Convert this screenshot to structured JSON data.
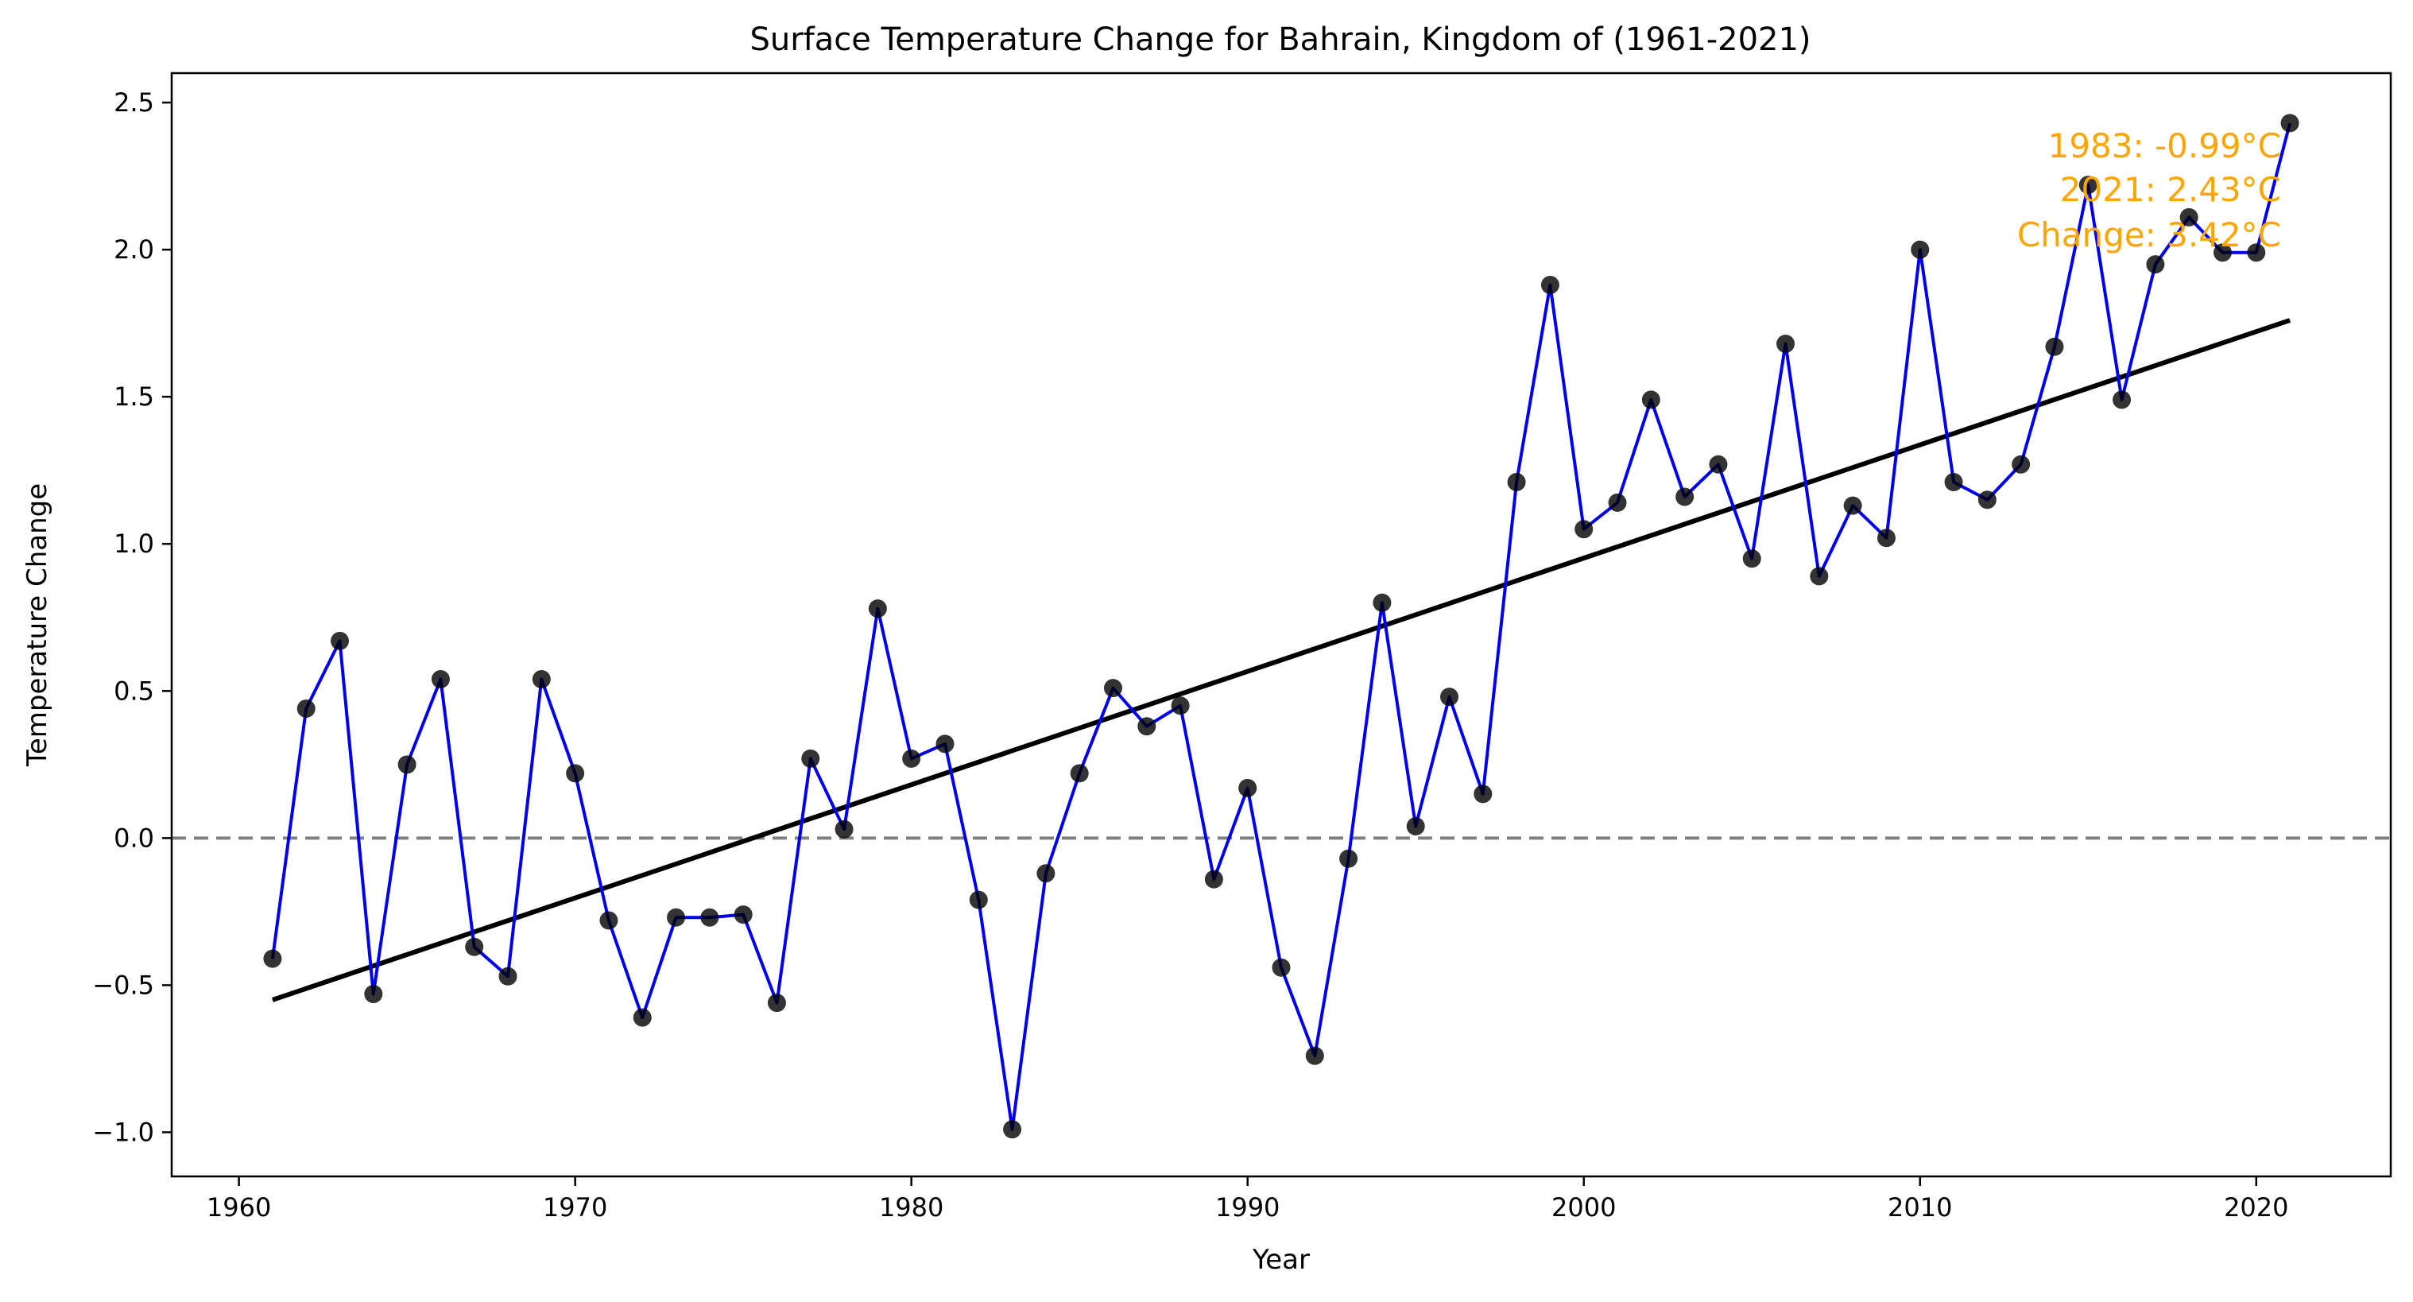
{
  "chart_data": {
    "type": "line",
    "title": "Surface Temperature Change for Bahrain, Kingdom of (1961-2021)",
    "xlabel": "Year",
    "ylabel": "Temperature Change",
    "xlim": [
      1958,
      2024
    ],
    "ylim": [
      -1.15,
      2.6
    ],
    "xticks": [
      1960,
      1970,
      1980,
      1990,
      2000,
      2010,
      2020
    ],
    "yticks": [
      -1.0,
      -0.5,
      0.0,
      0.5,
      1.0,
      1.5,
      2.0,
      2.5
    ],
    "ytick_labels": [
      "−1.0",
      "−0.5",
      "0.0",
      "0.5",
      "1.0",
      "1.5",
      "2.0",
      "2.5"
    ],
    "grid": false,
    "zero_line": true,
    "colors": {
      "series": "#0000ee",
      "points": "#000000",
      "trend": "#000000",
      "zero": "#808080",
      "annotation": "#ffa500"
    },
    "x": [
      1961,
      1962,
      1963,
      1964,
      1965,
      1966,
      1967,
      1968,
      1969,
      1970,
      1971,
      1972,
      1973,
      1974,
      1975,
      1976,
      1977,
      1978,
      1979,
      1980,
      1981,
      1982,
      1983,
      1984,
      1985,
      1986,
      1987,
      1988,
      1989,
      1990,
      1991,
      1992,
      1993,
      1994,
      1995,
      1996,
      1997,
      1998,
      1999,
      2000,
      2001,
      2002,
      2003,
      2004,
      2005,
      2006,
      2007,
      2008,
      2009,
      2010,
      2011,
      2012,
      2013,
      2014,
      2015,
      2016,
      2017,
      2018,
      2019,
      2020,
      2021
    ],
    "values": [
      -0.41,
      0.44,
      0.67,
      -0.53,
      0.25,
      0.54,
      -0.37,
      -0.47,
      0.54,
      0.22,
      -0.28,
      -0.61,
      -0.27,
      -0.27,
      -0.26,
      -0.56,
      0.27,
      0.03,
      0.78,
      0.27,
      0.32,
      -0.21,
      -0.99,
      -0.12,
      0.22,
      0.51,
      0.38,
      0.45,
      -0.14,
      0.17,
      -0.44,
      -0.74,
      -0.07,
      0.8,
      0.04,
      0.48,
      0.15,
      1.21,
      1.88,
      1.05,
      1.14,
      1.49,
      1.16,
      1.27,
      0.95,
      1.68,
      0.89,
      1.13,
      1.02,
      2.0,
      1.21,
      1.15,
      1.27,
      1.67,
      2.22,
      1.49,
      1.95,
      2.11,
      1.99,
      1.99,
      2.43
    ],
    "trend": {
      "x": [
        1961,
        2021
      ],
      "y": [
        -0.55,
        1.76
      ]
    },
    "annotation_lines": [
      "1983: -0.99°C",
      "2021: 2.43°C",
      "Change: 3.42°C"
    ]
  }
}
